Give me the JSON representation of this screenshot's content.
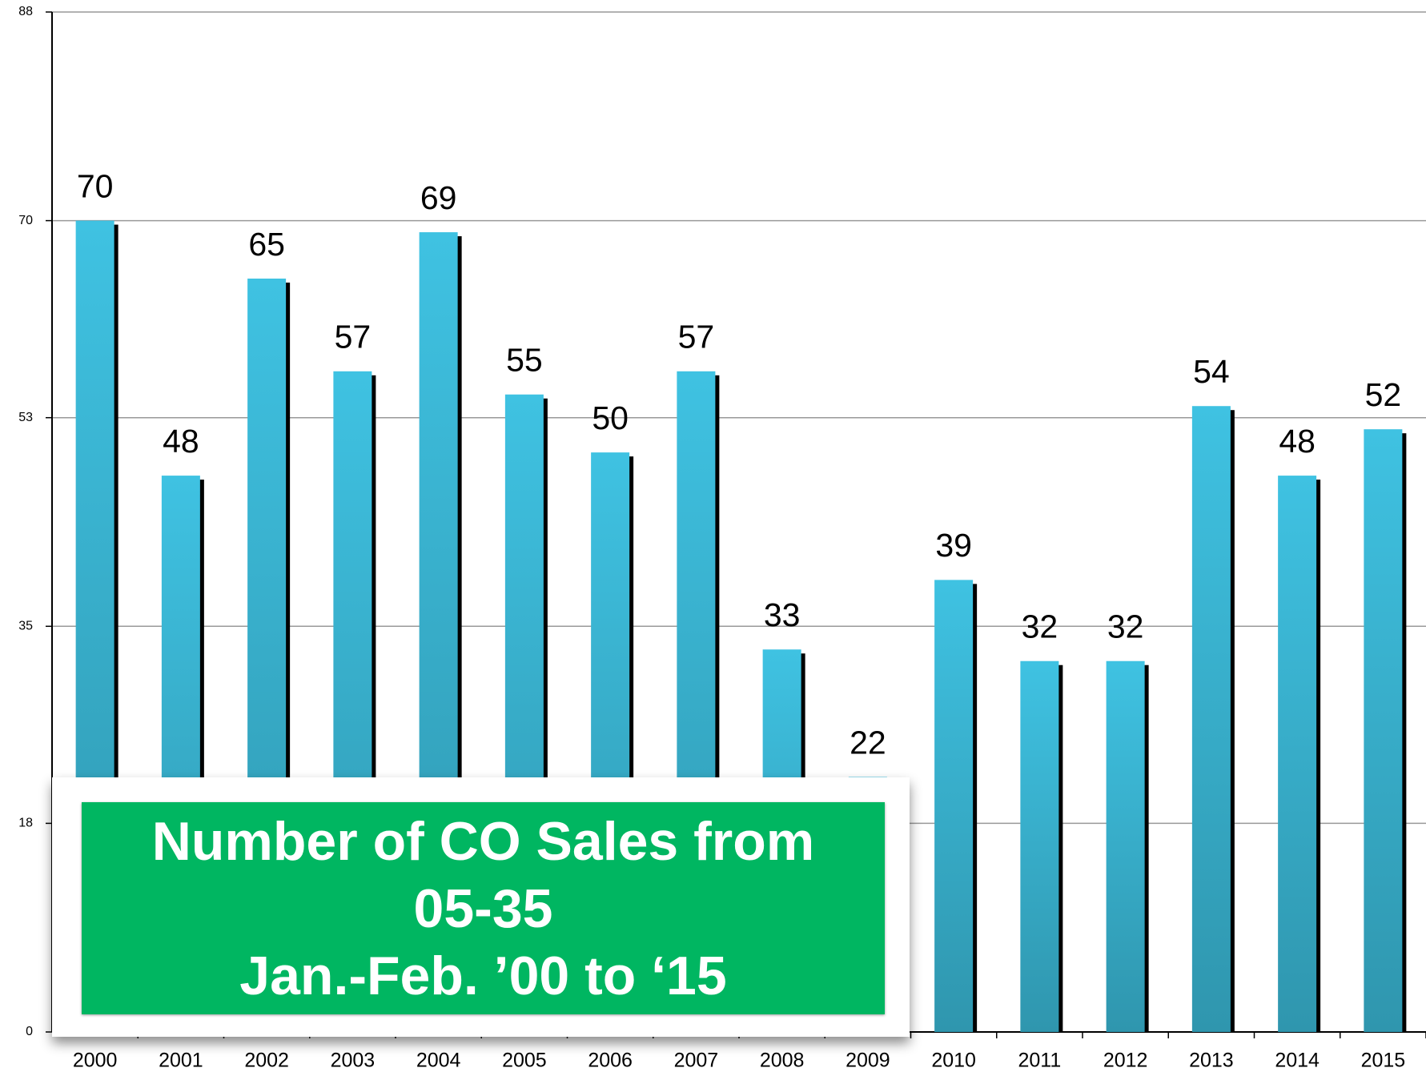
{
  "chart_data": {
    "type": "bar",
    "title": "Number of CO Sales from\n05-35\nJan.-Feb. ’00 to ‘15",
    "categories": [
      "2000",
      "2001",
      "2002",
      "2003",
      "2004",
      "2005",
      "2006",
      "2007",
      "2008",
      "2009",
      "2010",
      "2011",
      "2012",
      "2013",
      "2014",
      "2015"
    ],
    "values": [
      70,
      48,
      65,
      57,
      69,
      55,
      50,
      57,
      33,
      22,
      39,
      32,
      32,
      54,
      48,
      52
    ],
    "color": "#3cbfdf",
    "ylim": [
      0,
      88
    ],
    "yticks": [
      0,
      18,
      35,
      53,
      70,
      88
    ],
    "grid": true
  }
}
